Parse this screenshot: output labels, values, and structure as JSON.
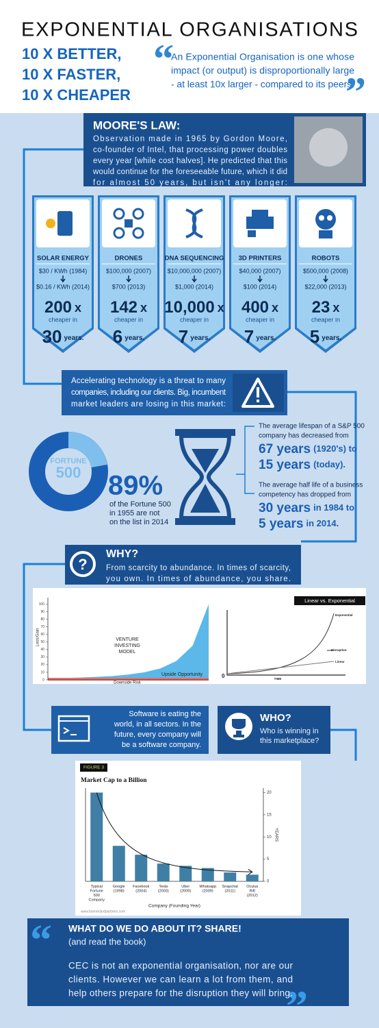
{
  "header": {
    "title": "EXPONENTIAL ORGANISATIONS",
    "taglines": [
      "10 X BETTER,",
      "10 X FASTER,",
      "10 X CHEAPER"
    ],
    "quote": [
      "An Exponential Organisation is one whose",
      "impact (or output) is disproportionally large",
      "- at least 10x larger - compared to its peers."
    ]
  },
  "moores_law": {
    "title": "MOORE'S LAW:",
    "lines": [
      "Observation made in 1965 by Gordon Moore,",
      "co-founder of Intel, that processing power doubles",
      "every year [while cost halves]. He predicted that this",
      "would continue for the foreseeable future, which it did",
      "for almost 50 years, but isn't any longer:"
    ]
  },
  "technologies": [
    {
      "name": "SOLAR ENERGY",
      "from": "$30 / KWh (1984)",
      "to": "$0.16 / KWh (2014)",
      "factor": "200",
      "factor_unit": "x",
      "cheaper": "cheaper in",
      "years": "30",
      "years_label": "years."
    },
    {
      "name": "DRONES",
      "from": "$100,000 (2007)",
      "to": "$700 (2013)",
      "factor": "142",
      "factor_unit": "x",
      "cheaper": "cheaper in",
      "years": "6",
      "years_label": "years."
    },
    {
      "name": "DNA SEQUENCING",
      "from": "$10,000,000 (2007)",
      "to": "$1,000 (2014)",
      "factor": "10,000",
      "factor_unit": "x",
      "cheaper": "cheaper in",
      "years": "7",
      "years_label": "years."
    },
    {
      "name": "3D PRINTERS",
      "from": "$40,000 (2007)",
      "to": "$100 (2014)",
      "factor": "400",
      "factor_unit": "x",
      "cheaper": "cheaper in",
      "years": "7",
      "years_label": "years."
    },
    {
      "name": "ROBOTS",
      "from": "$500,000 (2008)",
      "to": "$22,000 (2013)",
      "factor": "23",
      "factor_unit": "x",
      "cheaper": "cheaper in",
      "years": "5",
      "years_label": "years."
    }
  ],
  "threat": {
    "lines": [
      "Accelerating technology is a threat to many",
      "companies, including our clients. Big, incumbent",
      "market leaders are losing in this market:"
    ]
  },
  "fortune": {
    "badge": [
      "FORTUNE",
      "500"
    ],
    "percent": "89%",
    "lines": [
      "of the Fortune 500",
      "in 1955 are not",
      "on the list in 2014"
    ]
  },
  "lifespan": [
    {
      "lines": [
        "The average lifespan of a S&P 500",
        "company has decreased from"
      ],
      "stats": [
        {
          "big": "67 years",
          "small": "(1920's) to"
        },
        {
          "big": "15 years",
          "small": "(today)."
        }
      ]
    },
    {
      "lines": [
        "The average half life of a business",
        "competency has dropped from"
      ],
      "stats": [
        {
          "big": "30 years",
          "small": "in 1984 to"
        },
        {
          "big": "5 years",
          "small": "in 2014."
        }
      ]
    }
  ],
  "why": {
    "title": "WHY?",
    "lines": [
      "From scarcity to abundance. In times of scarcity,",
      "you own. In times of abundance, you share."
    ]
  },
  "growth_diagram": {
    "title": "Linear vs. Exponential",
    "labels": [
      "Exponential",
      "Disruption",
      "Linear"
    ],
    "xlabel": "TIME",
    "origin": "0"
  },
  "software": {
    "lines": [
      "Software is eating the",
      "world, in all sectors. In the",
      "future, every company will",
      "be a software company."
    ]
  },
  "who": {
    "title": "WHO?",
    "lines": [
      "Who is winning in",
      "this marketplace?"
    ]
  },
  "chart_data": [
    {
      "type": "area",
      "ylabel": "Loss/Gain",
      "annotation": [
        "VENTURE",
        "INVESTING",
        "MODEL"
      ],
      "upside_label": "Upside Opportunity",
      "downside_label": "Downside Risk",
      "x": [
        0,
        1,
        2,
        3,
        4,
        5,
        6,
        7,
        8,
        9,
        10
      ],
      "values": [
        2,
        2.5,
        3,
        4,
        5,
        7,
        10,
        15,
        25,
        45,
        100
      ],
      "color": "#5bb8e8",
      "risk_color": "#e8706a",
      "ylim": [
        0,
        105
      ],
      "yticks": [
        0,
        10,
        20,
        30,
        40,
        50,
        60,
        70,
        80,
        90,
        100
      ],
      "xlim": [
        0,
        10
      ]
    },
    {
      "type": "bar",
      "figure_label": "FIGURE 3",
      "title": "Market Cap to a Billion",
      "categories": [
        "Typical Fortune 500 Company",
        "Google (1998)",
        "Facebook (2004)",
        "Tesla (2003)",
        "Uber (2009)",
        "Whatsapp (2009)",
        "Snapchat (2011)",
        "Oculus Rift (2012)"
      ],
      "values": [
        20,
        8,
        6,
        4,
        3.5,
        3,
        2,
        1.5
      ],
      "color": "#3f7fa6",
      "ylim": [
        0,
        21
      ],
      "yticks": [
        0,
        5,
        10,
        15,
        20
      ],
      "ylabel": "YEARS",
      "xlabel": "Company (Founding Year)",
      "source": "www.bonnerandpartners.com"
    }
  ],
  "action": {
    "title": "WHAT DO WE DO ABOUT IT? SHARE!",
    "subtitle": "(and read the book)",
    "lines": [
      "CEC is not an exponential organisation, nor are our",
      "clients. However we can learn a lot from them, and",
      "help others prepare for the disruption they will bring."
    ]
  }
}
